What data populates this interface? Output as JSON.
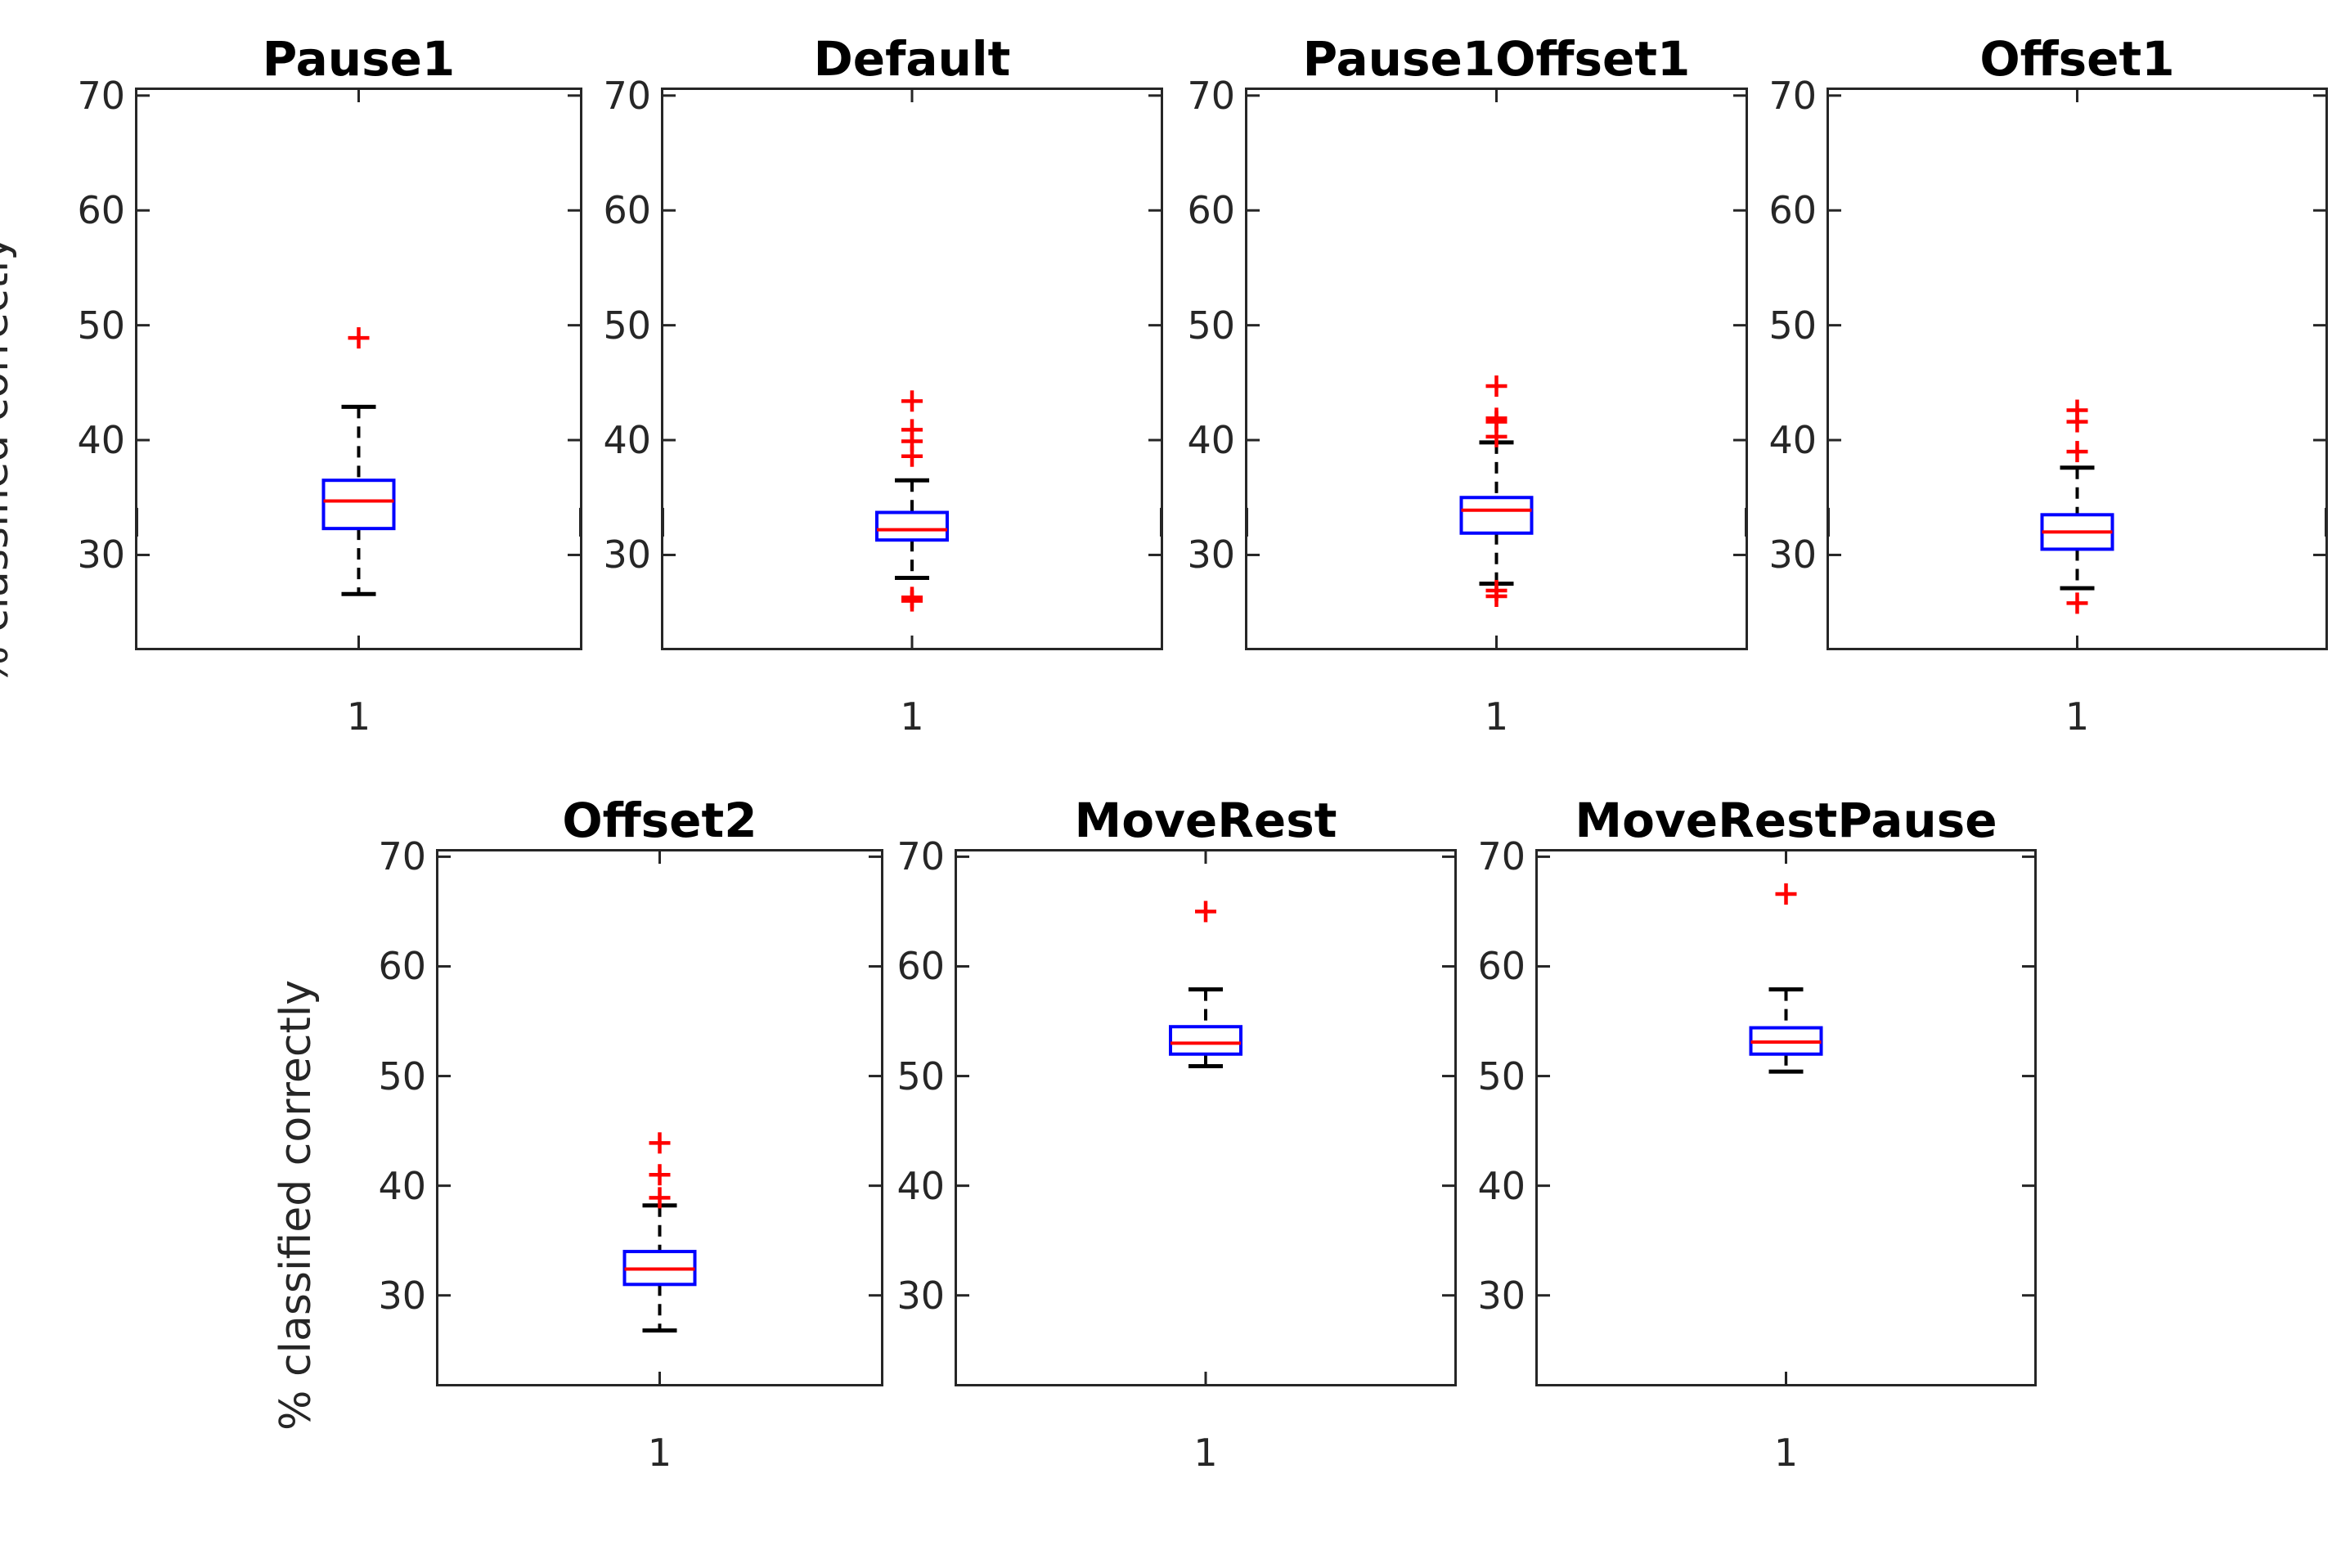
{
  "chart_data": {
    "type": "boxplot",
    "title": "",
    "ylabel": "% classified correctly",
    "xlabel": "",
    "x_category": "1",
    "ylim": [
      21.7,
      70.7
    ],
    "yticks": [
      30,
      40,
      50,
      60,
      70
    ],
    "grid": false,
    "legend": null,
    "layout_hint": "2 rows: 4 subplots on top row, 3 on bottom row; each subplot is a single box plot of one group labeled 1",
    "colors": {
      "box": "#0000ff",
      "median": "#ff0000",
      "outlier": "#ff0000",
      "whisker": "#000000",
      "cap": "#000000",
      "axis": "#262626",
      "tick_label": "#262626",
      "title": "#000000",
      "background": "#ffffff"
    },
    "subplots": [
      {
        "name": "Pause1",
        "row": 0,
        "col": 0,
        "has_ylabel": true,
        "stats": {
          "whisker_low": 26.6,
          "q1": 32.3,
          "median": 34.7,
          "q3": 36.5,
          "whisker_high": 42.9
        },
        "outliers": [
          48.9
        ]
      },
      {
        "name": "Default",
        "row": 0,
        "col": 1,
        "has_ylabel": false,
        "stats": {
          "whisker_low": 28.0,
          "q1": 31.3,
          "median": 32.2,
          "q3": 33.7,
          "whisker_high": 36.5
        },
        "outliers": [
          43.4,
          40.9,
          39.9,
          38.6,
          26.3,
          26.0
        ]
      },
      {
        "name": "Pause1Offset1",
        "row": 0,
        "col": 2,
        "has_ylabel": false,
        "stats": {
          "whisker_low": 27.5,
          "q1": 31.9,
          "median": 33.9,
          "q3": 35.0,
          "whisker_high": 39.8
        },
        "outliers": [
          44.7,
          41.9,
          41.6,
          40.3,
          26.9,
          26.4
        ]
      },
      {
        "name": "Offset1",
        "row": 0,
        "col": 3,
        "has_ylabel": false,
        "stats": {
          "whisker_low": 27.1,
          "q1": 30.5,
          "median": 32.0,
          "q3": 33.5,
          "whisker_high": 37.6
        },
        "outliers": [
          42.6,
          41.6,
          39.0,
          25.8
        ]
      },
      {
        "name": "Offset2",
        "row": 1,
        "col": 0,
        "has_ylabel": true,
        "stats": {
          "whisker_low": 26.8,
          "q1": 31.0,
          "median": 32.4,
          "q3": 34.0,
          "whisker_high": 38.2
        },
        "outliers": [
          43.9,
          41.0,
          38.9
        ]
      },
      {
        "name": "MoveRest",
        "row": 1,
        "col": 1,
        "has_ylabel": false,
        "stats": {
          "whisker_low": 50.9,
          "q1": 52.0,
          "median": 53.0,
          "q3": 54.5,
          "whisker_high": 57.9
        },
        "outliers": [
          65.0
        ]
      },
      {
        "name": "MoveRestPause",
        "row": 1,
        "col": 2,
        "has_ylabel": false,
        "stats": {
          "whisker_low": 50.4,
          "q1": 52.0,
          "median": 53.1,
          "q3": 54.4,
          "whisker_high": 57.9
        },
        "outliers": [
          66.6
        ]
      }
    ]
  }
}
